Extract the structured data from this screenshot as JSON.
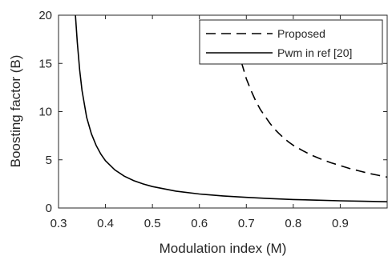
{
  "chart_data": {
    "type": "line",
    "title": "",
    "xlabel": "Modulation index (M)",
    "ylabel": "Boosting factor (B)",
    "xlim": [
      0.3,
      1.0
    ],
    "ylim": [
      0,
      20
    ],
    "xticks": [
      0.3,
      0.4,
      0.5,
      0.6,
      0.7,
      0.8,
      0.9
    ],
    "xtick_labels": [
      "0.3",
      "0.4",
      "0.5",
      "0.6",
      "0.7",
      "0.8",
      "0.9"
    ],
    "yticks": [
      0,
      5,
      10,
      15,
      20
    ],
    "ytick_labels": [
      "0",
      "5",
      "10",
      "15",
      "20"
    ],
    "grid": false,
    "box": true,
    "legend_position": "top-right",
    "series": [
      {
        "name": "Proposed",
        "style": "dashed",
        "color": "#000000",
        "x": [
          0.68,
          0.69,
          0.7,
          0.71,
          0.72,
          0.73,
          0.74,
          0.75,
          0.76,
          0.77,
          0.78,
          0.79,
          0.8,
          0.82,
          0.84,
          0.86,
          0.88,
          0.9,
          0.92,
          0.94,
          0.96,
          0.98,
          1.0
        ],
        "y": [
          16.6,
          15.05,
          13.4,
          12.2,
          11.1,
          10.2,
          9.5,
          8.8,
          8.2,
          7.7,
          7.25,
          6.85,
          6.5,
          5.95,
          5.45,
          5.05,
          4.7,
          4.4,
          4.1,
          3.85,
          3.6,
          3.4,
          3.2
        ]
      },
      {
        "name": "Pwm in ref [20]",
        "style": "solid",
        "color": "#000000",
        "x": [
          0.336,
          0.34,
          0.345,
          0.35,
          0.36,
          0.37,
          0.38,
          0.39,
          0.4,
          0.42,
          0.44,
          0.46,
          0.48,
          0.5,
          0.55,
          0.6,
          0.65,
          0.7,
          0.75,
          0.8,
          0.85,
          0.9,
          0.95,
          1.0
        ],
        "y": [
          20.0,
          17.2,
          14.3,
          12.2,
          9.4,
          7.7,
          6.5,
          5.6,
          4.9,
          3.95,
          3.3,
          2.85,
          2.5,
          2.22,
          1.75,
          1.45,
          1.25,
          1.1,
          0.98,
          0.88,
          0.81,
          0.75,
          0.7,
          0.65
        ]
      }
    ]
  }
}
